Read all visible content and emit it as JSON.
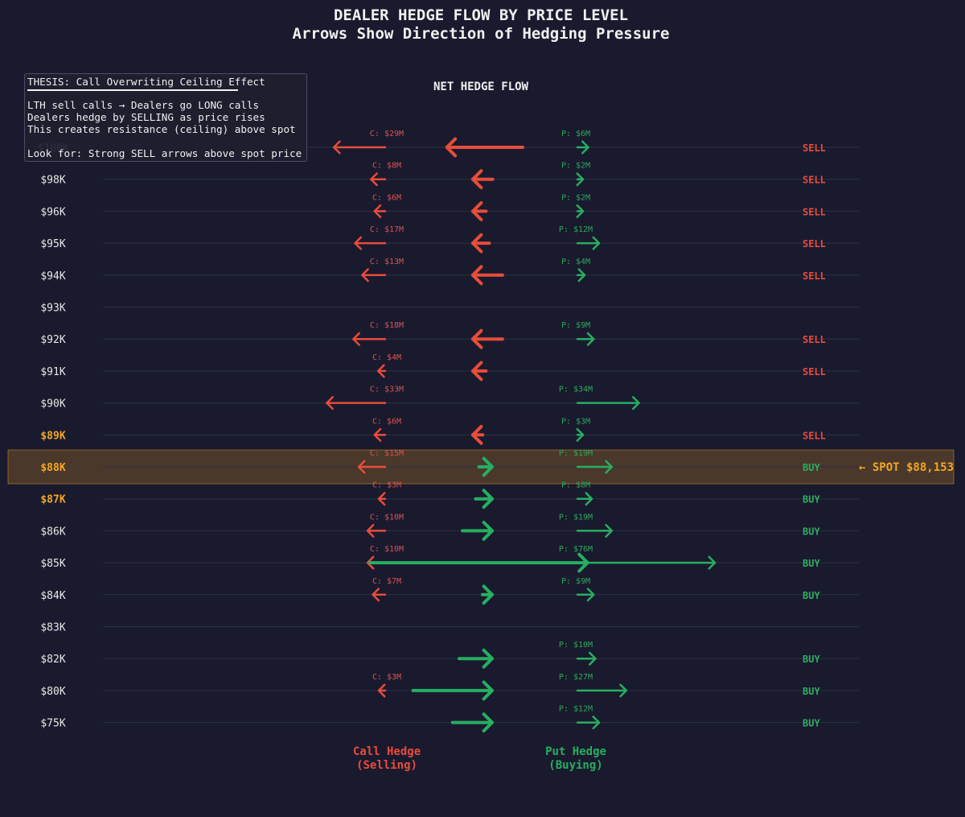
{
  "colors": {
    "background": "#1a1a2e",
    "call": "#e74c3c",
    "put": "#27ae60",
    "highlight": "#f5a623",
    "grid": "#2c2f45"
  },
  "chart_data": {
    "type": "arrow-flow",
    "title": "DEALER HEDGE FLOW BY PRICE LEVEL",
    "subtitle": "Arrows Show Direction of Hedging Pressure",
    "net_header": "NET HEDGE FLOW",
    "spot_label": "← SPOT $88,153",
    "spot_price": 88153,
    "call_footer": [
      "Call Hedge",
      "(Selling)"
    ],
    "put_footer": [
      "Put Hedge",
      "(Buying)"
    ],
    "rows": [
      {
        "price": "$100K",
        "call": 29,
        "put": 6,
        "net": -23,
        "signal": "SELL",
        "highlight": false
      },
      {
        "price": "$98K",
        "call": 8,
        "put": 2,
        "net": -6,
        "signal": "SELL",
        "highlight": false
      },
      {
        "price": "$96K",
        "call": 6,
        "put": 2,
        "net": -4,
        "signal": "SELL",
        "highlight": false
      },
      {
        "price": "$95K",
        "call": 17,
        "put": 12,
        "net": -5,
        "signal": "SELL",
        "highlight": false
      },
      {
        "price": "$94K",
        "call": 13,
        "put": 4,
        "net": -9,
        "signal": "SELL",
        "highlight": false
      },
      {
        "price": "$93K",
        "call": null,
        "put": null,
        "net": null,
        "signal": "",
        "highlight": false
      },
      {
        "price": "$92K",
        "call": 18,
        "put": 9,
        "net": -9,
        "signal": "SELL",
        "highlight": false
      },
      {
        "price": "$91K",
        "call": 4,
        "put": null,
        "net": -4,
        "signal": "SELL",
        "highlight": false
      },
      {
        "price": "$90K",
        "call": 33,
        "put": 34,
        "net": 1,
        "signal": "",
        "highlight": false
      },
      {
        "price": "$89K",
        "call": 6,
        "put": 3,
        "net": -3,
        "signal": "SELL",
        "highlight": true
      },
      {
        "price": "$88K",
        "call": 15,
        "put": 19,
        "net": 4,
        "signal": "BUY",
        "highlight": true
      },
      {
        "price": "$87K",
        "call": 3,
        "put": 8,
        "net": 5,
        "signal": "BUY",
        "highlight": true
      },
      {
        "price": "$86K",
        "call": 10,
        "put": 19,
        "net": 9,
        "signal": "BUY",
        "highlight": false
      },
      {
        "price": "$85K",
        "call": 10,
        "put": 76,
        "net": 66,
        "signal": "BUY",
        "highlight": false
      },
      {
        "price": "$84K",
        "call": 7,
        "put": 9,
        "net": 2,
        "signal": "BUY",
        "highlight": false
      },
      {
        "price": "$83K",
        "call": null,
        "put": null,
        "net": null,
        "signal": "",
        "highlight": false
      },
      {
        "price": "$82K",
        "call": null,
        "put": 10,
        "net": 10,
        "signal": "BUY",
        "highlight": false
      },
      {
        "price": "$80K",
        "call": 3,
        "put": 27,
        "net": 24,
        "signal": "BUY",
        "highlight": false
      },
      {
        "price": "$75K",
        "call": null,
        "put": 12,
        "net": 12,
        "signal": "BUY",
        "highlight": false
      }
    ]
  },
  "thesis": {
    "title": "THESIS: Call Overwriting Ceiling Effect",
    "lines": [
      "LTH sell calls → Dealers go LONG calls",
      "Dealers hedge by SELLING as price rises",
      "This creates resistance (ceiling) above spot"
    ],
    "footer": "Look for: Strong SELL arrows above spot price"
  }
}
